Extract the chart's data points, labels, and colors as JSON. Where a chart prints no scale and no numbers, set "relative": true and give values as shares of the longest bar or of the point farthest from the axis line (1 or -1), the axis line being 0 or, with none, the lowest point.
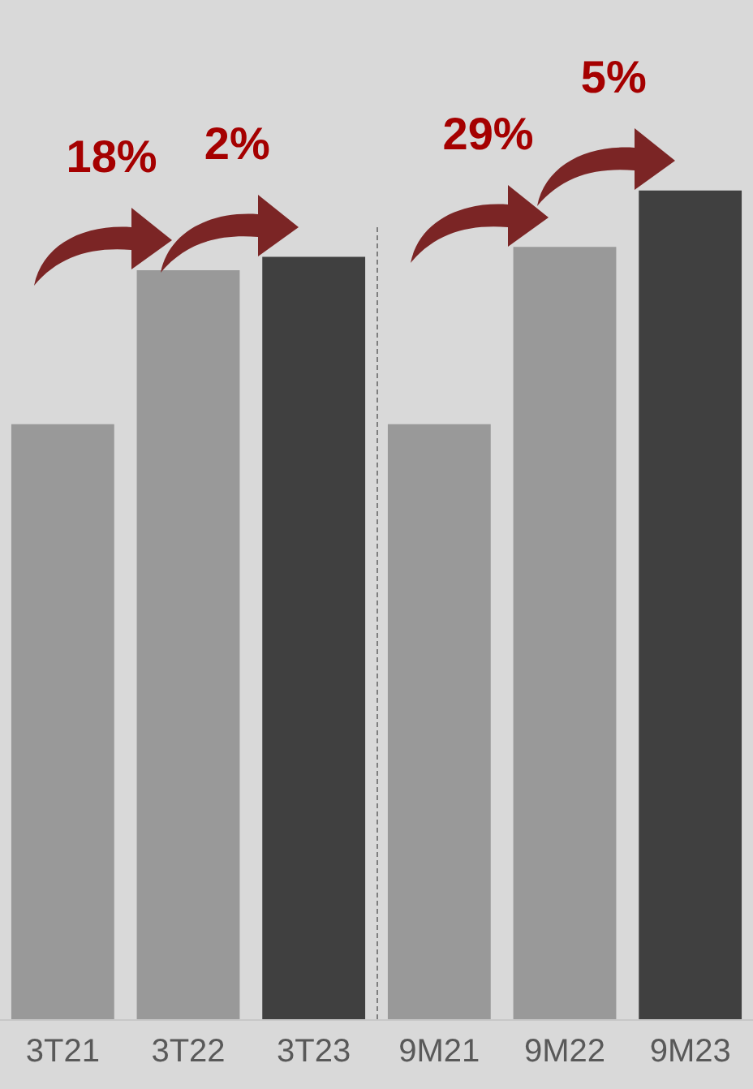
{
  "chart_data": {
    "type": "bar",
    "relative": true,
    "categories": [
      "3T21",
      "3T22",
      "3T23",
      "9M21",
      "9M22",
      "9M23"
    ],
    "values": [
      0.718,
      0.904,
      0.92,
      0.718,
      0.932,
      1
    ],
    "colors": [
      "#999999",
      "#999999",
      "#404040",
      "#999999",
      "#999999",
      "#404040"
    ],
    "annotations": [
      {
        "text": "18%",
        "x": "3T22",
        "y": 0.904
      },
      {
        "text": "2%",
        "x": "3T23",
        "y": 0.92
      },
      {
        "text": "29%",
        "x": "9M22",
        "y": 0.932
      },
      {
        "text": "5%",
        "x": "9M23",
        "y": 1
      }
    ],
    "grid": false
  }
}
